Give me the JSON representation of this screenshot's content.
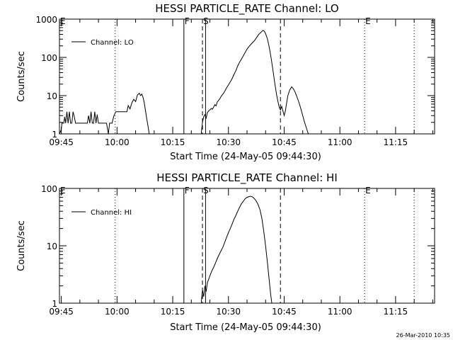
{
  "footer": {
    "timestamp": "26-Mar-2010 10:35"
  },
  "chart_data": [
    {
      "type": "line",
      "title": "HESSI PARTICLE_RATE Channel: LO",
      "xlabel": "Start Time (24-May-05 09:44:30)",
      "ylabel": "Counts/sec",
      "yscale": "log",
      "ylim": [
        1,
        1000
      ],
      "xlim": [
        "09:44:30",
        "11:25:30"
      ],
      "x_ticks": [
        "09:45",
        "10:00",
        "10:15",
        "10:30",
        "10:45",
        "11:00",
        "11:15"
      ],
      "y_ticks": [
        "1",
        "10",
        "100",
        "1000"
      ],
      "legend": {
        "position": "top-left",
        "entries": [
          "Channel: LO"
        ]
      },
      "markers": [
        {
          "label": "E",
          "time": "09:44:30",
          "style": "dotted"
        },
        {
          "label": "",
          "time": "09:59:30",
          "style": "dotted"
        },
        {
          "label": "F",
          "time": "10:18:00",
          "style": "solid"
        },
        {
          "label": "S",
          "time": "10:23:00",
          "style": "dashed"
        },
        {
          "label": "",
          "time": "10:23:50",
          "style": "solid"
        },
        {
          "label": "",
          "time": "10:44:00",
          "style": "dashed"
        },
        {
          "label": "E",
          "time": "11:06:40",
          "style": "dotted"
        },
        {
          "label": "",
          "time": "11:20:00",
          "style": "dotted"
        }
      ],
      "series": [
        {
          "name": "Channel: LO",
          "segments": [
            [
              [
                "09:44:30",
                1
              ],
              [
                "09:45:00",
                1.3
              ],
              [
                "09:45:10",
                1.9
              ],
              [
                "09:45:40",
                1.9
              ],
              [
                "09:45:55",
                2.8
              ],
              [
                "09:46:10",
                1.9
              ],
              [
                "09:46:30",
                3.8
              ],
              [
                "09:46:50",
                1.9
              ],
              [
                "09:47:10",
                3.8
              ],
              [
                "09:47:30",
                1.9
              ],
              [
                "09:47:50",
                1.9
              ],
              [
                "09:48:10",
                3.8
              ],
              [
                "09:48:30",
                2.8
              ],
              [
                "09:48:50",
                1.9
              ],
              [
                "09:49:20",
                1.9
              ],
              [
                "09:50:00",
                1.9
              ],
              [
                "09:50:40",
                1.9
              ],
              [
                "09:51:20",
                1.9
              ],
              [
                "09:52:00",
                1.9
              ],
              [
                "09:52:20",
                3.0
              ],
              [
                "09:52:40",
                1.9
              ],
              [
                "09:53:00",
                3.8
              ],
              [
                "09:53:20",
                1.9
              ],
              [
                "09:53:40",
                1.9
              ],
              [
                "09:54:00",
                3.8
              ],
              [
                "09:54:20",
                1.9
              ],
              [
                "09:54:40",
                3.2
              ],
              [
                "09:55:00",
                1.9
              ],
              [
                "09:55:30",
                1.9
              ],
              [
                "09:56:20",
                1.9
              ],
              [
                "09:57:10",
                1.9
              ],
              [
                "09:57:40",
                1.0
              ],
              [
                "09:58:00",
                1.9
              ],
              [
                "09:58:40",
                1.9
              ],
              [
                "09:59:10",
                3.0
              ],
              [
                "09:59:40",
                3.8
              ],
              [
                "10:00:40",
                3.8
              ],
              [
                "10:01:40",
                3.8
              ],
              [
                "10:02:40",
                3.8
              ],
              [
                "10:03:00",
                5.5
              ],
              [
                "10:03:30",
                4.5
              ],
              [
                "10:04:00",
                6.5
              ],
              [
                "10:04:30",
                8.0
              ],
              [
                "10:05:00",
                7.0
              ],
              [
                "10:05:30",
                10.5
              ],
              [
                "10:06:00",
                11.5
              ],
              [
                "10:06:20",
                10.0
              ],
              [
                "10:06:40",
                11.0
              ],
              [
                "10:07:00",
                9.0
              ],
              [
                "10:07:20",
                6.5
              ],
              [
                "10:07:40",
                4.0
              ],
              [
                "10:08:00",
                2.5
              ],
              [
                "10:08:20",
                1.6
              ],
              [
                "10:08:40",
                1.0
              ]
            ],
            [
              [
                "10:22:40",
                1.0
              ],
              [
                "10:23:00",
                2.0
              ],
              [
                "10:23:20",
                2.8
              ],
              [
                "10:23:40",
                3.2
              ],
              [
                "10:24:00",
                2.6
              ],
              [
                "10:24:20",
                3.6
              ],
              [
                "10:24:40",
                4.0
              ],
              [
                "10:25:00",
                4.2
              ],
              [
                "10:25:20",
                4.6
              ],
              [
                "10:25:40",
                4.4
              ],
              [
                "10:26:00",
                5.0
              ],
              [
                "10:26:20",
                5.8
              ],
              [
                "10:26:40",
                5.4
              ],
              [
                "10:27:00",
                6.8
              ],
              [
                "10:27:20",
                7.5
              ],
              [
                "10:27:40",
                8.2
              ],
              [
                "10:28:00",
                9.5
              ],
              [
                "10:28:20",
                10.5
              ],
              [
                "10:28:40",
                11.5
              ],
              [
                "10:29:00",
                13
              ],
              [
                "10:29:20",
                15
              ],
              [
                "10:29:40",
                17
              ],
              [
                "10:30:00",
                19
              ],
              [
                "10:30:30",
                23
              ],
              [
                "10:31:00",
                28
              ],
              [
                "10:31:30",
                36
              ],
              [
                "10:32:00",
                45
              ],
              [
                "10:32:30",
                60
              ],
              [
                "10:33:00",
                75
              ],
              [
                "10:33:30",
                90
              ],
              [
                "10:34:00",
                110
              ],
              [
                "10:34:30",
                135
              ],
              [
                "10:35:00",
                165
              ],
              [
                "10:35:30",
                190
              ],
              [
                "10:36:00",
                215
              ],
              [
                "10:36:30",
                245
              ],
              [
                "10:37:00",
                275
              ],
              [
                "10:37:30",
                320
              ],
              [
                "10:38:00",
                380
              ],
              [
                "10:38:30",
                430
              ],
              [
                "10:39:00",
                480
              ],
              [
                "10:39:20",
                510
              ],
              [
                "10:39:40",
                480
              ],
              [
                "10:40:00",
                420
              ],
              [
                "10:40:30",
                300
              ],
              [
                "10:41:00",
                180
              ],
              [
                "10:41:30",
                95
              ],
              [
                "10:42:00",
                45
              ],
              [
                "10:42:30",
                20
              ],
              [
                "10:43:00",
                10
              ],
              [
                "10:43:20",
                7.0
              ],
              [
                "10:43:40",
                5.0
              ],
              [
                "10:44:00",
                4.2
              ],
              [
                "10:44:20",
                5.2
              ],
              [
                "10:44:40",
                4.0
              ],
              [
                "10:45:00",
                3.0
              ],
              [
                "10:45:20",
                4.0
              ],
              [
                "10:45:40",
                6.5
              ],
              [
                "10:46:00",
                10
              ],
              [
                "10:46:30",
                14
              ],
              [
                "10:47:00",
                17
              ],
              [
                "10:47:30",
                15
              ],
              [
                "10:48:00",
                12
              ],
              [
                "10:48:30",
                9.0
              ],
              [
                "10:49:00",
                6.5
              ],
              [
                "10:49:30",
                4.5
              ],
              [
                "10:50:00",
                3.0
              ],
              [
                "10:50:30",
                2.0
              ],
              [
                "10:51:00",
                1.4
              ],
              [
                "10:51:30",
                1.0
              ]
            ]
          ]
        }
      ]
    },
    {
      "type": "line",
      "title": "HESSI PARTICLE_RATE Channel: HI",
      "xlabel": "Start Time (24-May-05 09:44:30)",
      "ylabel": "Counts/sec",
      "yscale": "log",
      "ylim": [
        1,
        100
      ],
      "xlim": [
        "09:44:30",
        "11:25:30"
      ],
      "x_ticks": [
        "09:45",
        "10:00",
        "10:15",
        "10:30",
        "10:45",
        "11:00",
        "11:15"
      ],
      "y_ticks": [
        "1",
        "10",
        "100"
      ],
      "legend": {
        "position": "top-left",
        "entries": [
          "Channel: HI"
        ]
      },
      "markers": [
        {
          "label": "E",
          "time": "09:44:30",
          "style": "dotted"
        },
        {
          "label": "",
          "time": "09:59:30",
          "style": "dotted"
        },
        {
          "label": "F",
          "time": "10:18:00",
          "style": "solid"
        },
        {
          "label": "S",
          "time": "10:23:00",
          "style": "dashed"
        },
        {
          "label": "",
          "time": "10:23:50",
          "style": "solid"
        },
        {
          "label": "",
          "time": "10:44:00",
          "style": "dashed"
        },
        {
          "label": "E",
          "time": "11:06:40",
          "style": "dotted"
        },
        {
          "label": "",
          "time": "11:20:00",
          "style": "dotted"
        }
      ],
      "series": [
        {
          "name": "Channel: HI",
          "segments": [
            [
              [
                "10:22:40",
                1.0
              ],
              [
                "10:23:00",
                1.7
              ],
              [
                "10:23:20",
                1.3
              ],
              [
                "10:23:40",
                2.0
              ],
              [
                "10:24:00",
                1.6
              ],
              [
                "10:24:20",
                2.3
              ],
              [
                "10:24:40",
                2.6
              ],
              [
                "10:25:00",
                3.0
              ],
              [
                "10:25:30",
                3.6
              ],
              [
                "10:26:00",
                4.2
              ],
              [
                "10:26:30",
                5.0
              ],
              [
                "10:27:00",
                6.0
              ],
              [
                "10:27:30",
                7.0
              ],
              [
                "10:28:00",
                8.2
              ],
              [
                "10:28:30",
                9.5
              ],
              [
                "10:29:00",
                11.5
              ],
              [
                "10:29:30",
                14
              ],
              [
                "10:30:00",
                17
              ],
              [
                "10:30:30",
                20
              ],
              [
                "10:31:00",
                24
              ],
              [
                "10:31:30",
                29
              ],
              [
                "10:32:00",
                34
              ],
              [
                "10:32:30",
                40
              ],
              [
                "10:33:00",
                47
              ],
              [
                "10:33:30",
                54
              ],
              [
                "10:34:00",
                60
              ],
              [
                "10:34:30",
                66
              ],
              [
                "10:35:00",
                70
              ],
              [
                "10:35:30",
                72
              ],
              [
                "10:36:00",
                73
              ],
              [
                "10:36:30",
                71
              ],
              [
                "10:37:00",
                66
              ],
              [
                "10:37:30",
                60
              ],
              [
                "10:38:00",
                52
              ],
              [
                "10:38:30",
                42
              ],
              [
                "10:39:00",
                30
              ],
              [
                "10:39:30",
                18
              ],
              [
                "10:40:00",
                10
              ],
              [
                "10:40:30",
                5.0
              ],
              [
                "10:41:00",
                2.4
              ],
              [
                "10:41:20",
                1.5
              ],
              [
                "10:41:40",
                1.0
              ]
            ]
          ]
        }
      ]
    }
  ]
}
